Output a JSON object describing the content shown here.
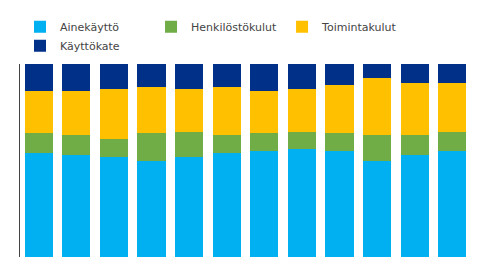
{
  "chart_data": {
    "type": "bar",
    "stacked": true,
    "categories": [
      null,
      null,
      null,
      null,
      null,
      null,
      null,
      null,
      null,
      null,
      null,
      null
    ],
    "series": [
      {
        "name": "Ainekäyttö",
        "color": "#00B0F0",
        "values": [
          54,
          53,
          52,
          50,
          52,
          54,
          55,
          56,
          55,
          50,
          53,
          55
        ]
      },
      {
        "name": "Henkilöstökulut",
        "color": "#70AD47",
        "values": [
          10,
          10,
          9,
          14,
          13,
          9,
          9,
          9,
          9,
          13,
          10,
          10
        ]
      },
      {
        "name": "Toimintakulut",
        "color": "#FFC000",
        "values": [
          22,
          23,
          26,
          24,
          22,
          25,
          22,
          22,
          25,
          30,
          27,
          25
        ]
      },
      {
        "name": "Käyttökate",
        "color": "#003087",
        "values": [
          14,
          14,
          13,
          12,
          13,
          12,
          14,
          13,
          11,
          7,
          10,
          10
        ]
      }
    ],
    "ylim": [
      0,
      100
    ],
    "yticks": [],
    "grid": false,
    "tick_labels": false,
    "legend": "top"
  }
}
